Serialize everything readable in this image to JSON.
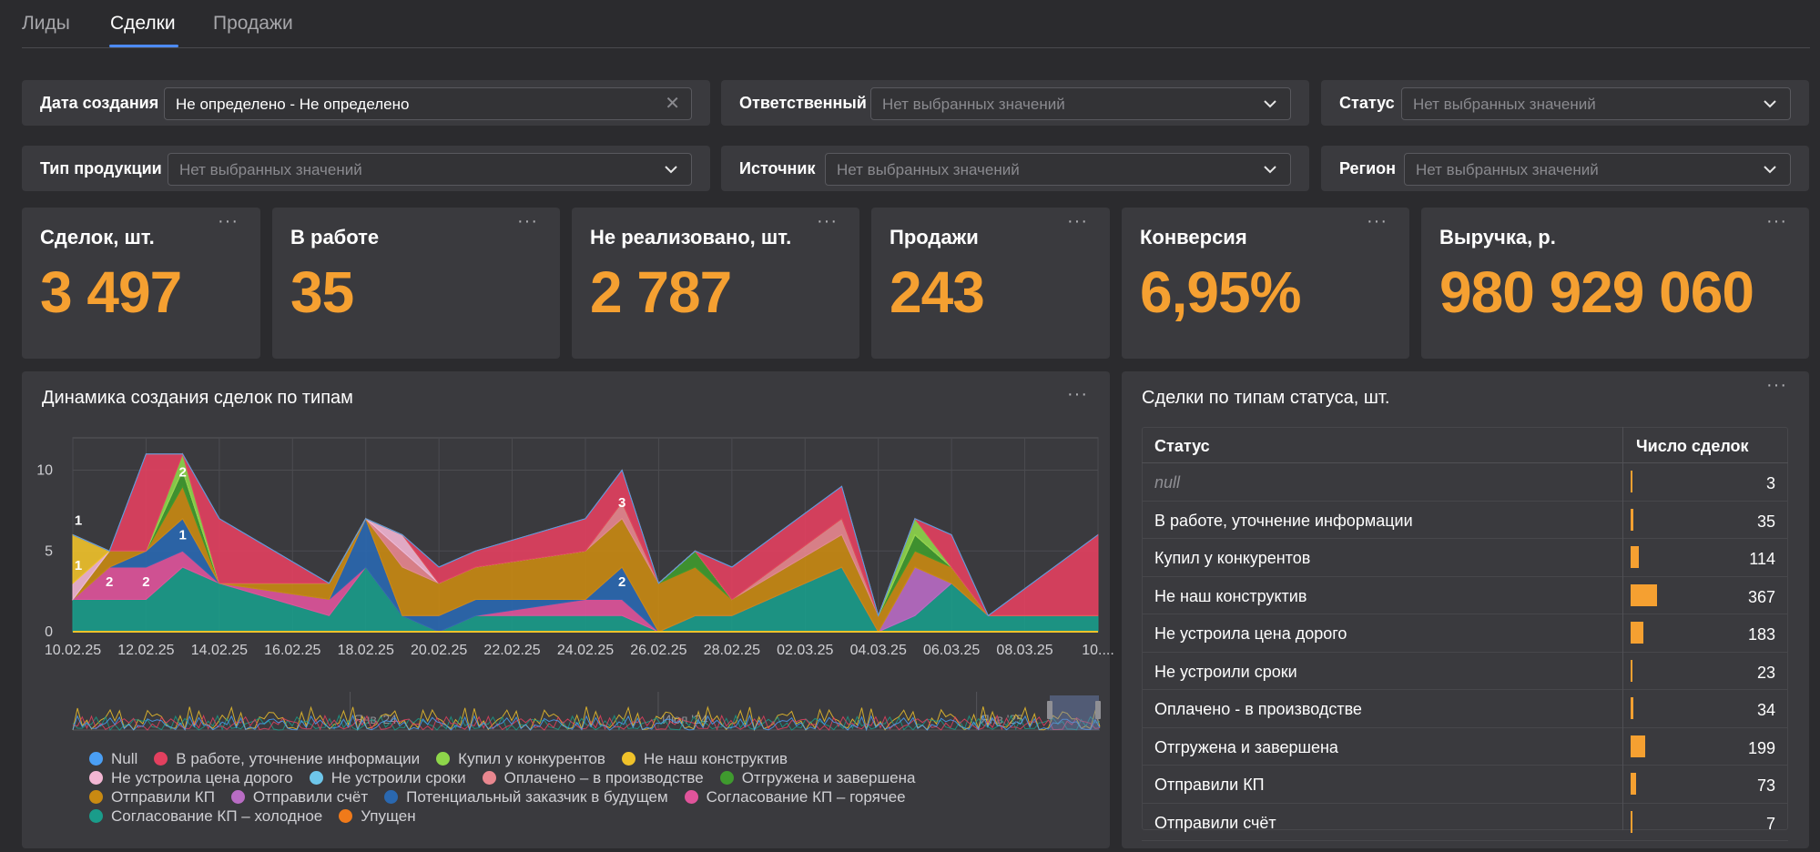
{
  "tabs": [
    {
      "label": "Лиды",
      "active": false
    },
    {
      "label": "Сделки",
      "active": true
    },
    {
      "label": "Продажи",
      "active": false
    }
  ],
  "filters": {
    "created": {
      "label": "Дата создания",
      "value": "Не определено - Не определено"
    },
    "responsible": {
      "label": "Ответственный",
      "placeholder": "Нет выбранных значений"
    },
    "status": {
      "label": "Статус",
      "placeholder": "Нет выбранных значений"
    },
    "product": {
      "label": "Тип продукции",
      "placeholder": "Нет выбранных значений"
    },
    "source": {
      "label": "Источник",
      "placeholder": "Нет выбранных значений"
    },
    "region": {
      "label": "Регион",
      "placeholder": "Нет выбранных значений"
    }
  },
  "kpis": [
    {
      "title": "Сделок, шт.",
      "value": "3 497"
    },
    {
      "title": "В работе",
      "value": "35"
    },
    {
      "title": "Не реализовано, шт.",
      "value": "2 787"
    },
    {
      "title": "Продажи",
      "value": "243"
    },
    {
      "title": "Конверсия",
      "value": "6,95%"
    },
    {
      "title": "Выручка, р.",
      "value": "980 929 060"
    }
  ],
  "menu_dots": "···",
  "colors": {
    "accent": "#f5a031",
    "tab_active": "#4d8bf5",
    "panel": "#3a3a3e",
    "background": "#2b2b2e"
  },
  "dynamics_panel": {
    "title": "Динамика создания сделок по типам"
  },
  "chart_data": {
    "type": "area",
    "stacked": true,
    "x": [
      "10.02.25",
      "11.02.25",
      "12.02.25",
      "13.02.25",
      "14.02.25",
      "17.02.25",
      "18.02.25",
      "19.02.25",
      "20.02.25",
      "21.02.25",
      "24.02.25",
      "25.02.25",
      "26.02.25",
      "27.02.25",
      "28.02.25",
      "03.03.25",
      "04.03.25",
      "05.03.25",
      "06.03.25",
      "07.03.25",
      "10.03.25"
    ],
    "x_tick_labels": [
      "10.02.25",
      "12.02.25",
      "14.02.25",
      "16.02.25",
      "18.02.25",
      "20.02.25",
      "22.02.25",
      "24.02.25",
      "26.02.25",
      "28.02.25",
      "02.03.25",
      "04.03.25",
      "06.03.25",
      "08.03.25",
      "10...."
    ],
    "y_ticks": [
      0,
      5,
      10
    ],
    "ylim": [
      0,
      12
    ],
    "grid": true,
    "series": [
      {
        "name": "Согласование КП – холодное",
        "color": "#1a9c8a",
        "values": [
          2,
          2,
          2,
          4,
          3,
          1,
          4,
          1,
          0,
          1,
          1,
          1,
          0,
          1,
          1,
          4,
          0,
          1,
          3,
          1,
          1
        ]
      },
      {
        "name": "Согласование КП – горячее",
        "color": "#e0549b",
        "values": [
          0,
          2,
          2,
          1,
          0,
          1,
          0,
          0,
          0,
          0,
          1,
          1,
          0,
          0,
          0,
          0,
          0,
          0,
          0,
          0,
          0
        ]
      },
      {
        "name": "Потенциальный заказчик в будущем",
        "color": "#2a68b0",
        "values": [
          0,
          0,
          1,
          2,
          0,
          0,
          3,
          0,
          1,
          1,
          0,
          2,
          0,
          0,
          0,
          0,
          0,
          0,
          0,
          0,
          0
        ]
      },
      {
        "name": "Отправили счёт",
        "color": "#b96cc4",
        "values": [
          0,
          0,
          0,
          0,
          0,
          0,
          0,
          0,
          0,
          0,
          0,
          0,
          0,
          0,
          0,
          0,
          0,
          3,
          0,
          0,
          0
        ]
      },
      {
        "name": "Отправили КП",
        "color": "#c98a12",
        "values": [
          0,
          1,
          0,
          2,
          0,
          1,
          0,
          3,
          2,
          2,
          3,
          3,
          3,
          3,
          1,
          2,
          1,
          1,
          1,
          0,
          0
        ]
      },
      {
        "name": "Отгружена и завершена",
        "color": "#3f9a2e",
        "values": [
          0,
          0,
          0,
          1,
          0,
          0,
          0,
          0,
          0,
          0,
          0,
          0,
          0,
          1,
          0,
          0,
          0,
          1,
          0,
          0,
          0
        ]
      },
      {
        "name": "Оплачено – в производстве",
        "color": "#e9878f",
        "values": [
          0,
          0,
          0,
          0,
          0,
          0,
          0,
          1,
          0,
          0,
          0,
          1,
          0,
          0,
          0,
          1,
          0,
          0,
          0,
          0,
          0
        ]
      },
      {
        "name": "Не устроили сроки",
        "color": "#6ec6ea",
        "values": [
          0,
          0,
          0,
          0,
          0,
          0,
          0,
          0,
          0,
          0,
          0,
          0,
          0,
          0,
          0,
          0,
          0,
          0,
          0,
          0,
          0
        ]
      },
      {
        "name": "Не устроила цена дорого",
        "color": "#f3b6d3",
        "values": [
          1,
          0,
          0,
          0,
          0,
          0,
          0,
          1,
          0,
          0,
          0,
          0,
          0,
          0,
          0,
          0,
          0,
          0,
          0,
          0,
          0
        ]
      },
      {
        "name": "Не наш конструктив",
        "color": "#f0c22a",
        "values": [
          3,
          0,
          0,
          0,
          0,
          0,
          0,
          0,
          0,
          0,
          0,
          0,
          0,
          0,
          0,
          0,
          0,
          0,
          0,
          0,
          0
        ]
      },
      {
        "name": "Купил у конкурентов",
        "color": "#8ed64a",
        "values": [
          0,
          0,
          0,
          1,
          0,
          0,
          0,
          0,
          0,
          0,
          0,
          0,
          0,
          0,
          0,
          0,
          0,
          1,
          0,
          0,
          0
        ]
      },
      {
        "name": "В работе, уточнение информации",
        "color": "#e3405f",
        "values": [
          0,
          0,
          6,
          0,
          4,
          0,
          0,
          0,
          1,
          1,
          2,
          2,
          0,
          0,
          2,
          2,
          0,
          0,
          2,
          0,
          5
        ]
      },
      {
        "name": "Упущен",
        "color": "#f07a1a",
        "values": [
          0,
          0,
          0,
          0,
          0,
          0,
          0,
          0,
          0,
          0,
          0,
          0,
          0,
          0,
          0,
          0,
          0,
          0,
          0,
          0,
          0
        ]
      },
      {
        "name": "Null",
        "color": "#4a9ff5",
        "values": [
          0,
          0,
          0,
          0,
          0,
          0,
          0,
          0,
          0,
          0,
          0,
          0,
          0,
          0,
          0,
          0,
          0,
          0,
          0,
          0,
          0
        ]
      }
    ],
    "data_labels": [
      {
        "x": "10.02.25",
        "value": "1",
        "level": 6.9
      },
      {
        "x": "10.02.25",
        "value": "1",
        "level": 4.1
      },
      {
        "x": "11.02.25",
        "value": "2",
        "level": 3.1
      },
      {
        "x": "12.02.25",
        "value": "2",
        "level": 3.1
      },
      {
        "x": "13.02.25",
        "value": "2",
        "level": 9.9
      },
      {
        "x": "13.02.25",
        "value": "1",
        "level": 6.0
      },
      {
        "x": "25.02.25",
        "value": "3",
        "level": 8.0
      },
      {
        "x": "25.02.25",
        "value": "2",
        "level": 3.1
      }
    ],
    "navigator_labels": [
      "Янв '24",
      "Июл '24",
      "Янв '25"
    ]
  },
  "legend_rows": [
    [
      "Null",
      "В работе, уточнение информации",
      "Купил у конкурентов",
      "Не наш конструктив"
    ],
    [
      "Не устроила цена дорого",
      "Не устроили сроки",
      "Оплачено – в производстве",
      "Отгружена и завершена"
    ],
    [
      "Отправили КП",
      "Отправили счёт",
      "Потенциальный заказчик в будущем",
      "Согласование КП – горячее"
    ],
    [
      "Согласование КП – холодное",
      "Упущен"
    ]
  ],
  "status_panel": {
    "title": "Сделки по типам статуса, шт.",
    "col_status": "Статус",
    "col_count": "Число сделок",
    "rows": [
      {
        "status": "null",
        "count": 3
      },
      {
        "status": "В работе, уточнение информации",
        "count": 35
      },
      {
        "status": "Купил у конкурентов",
        "count": 114
      },
      {
        "status": "Не наш конструктив",
        "count": 367
      },
      {
        "status": "Не устроила цена дорого",
        "count": 183
      },
      {
        "status": "Не устроили сроки",
        "count": 23
      },
      {
        "status": "Оплачено - в производстве",
        "count": 34
      },
      {
        "status": "Отгружена и завершена",
        "count": 199
      },
      {
        "status": "Отправили КП",
        "count": 73
      },
      {
        "status": "Отправили счёт",
        "count": 7
      }
    ]
  }
}
